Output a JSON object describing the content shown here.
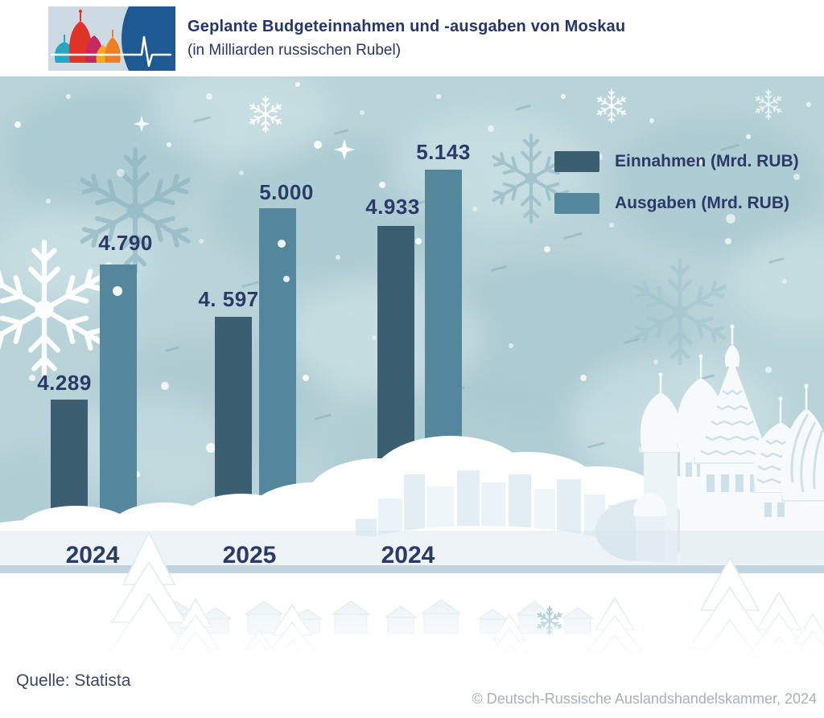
{
  "header": {
    "title": "Geplante Budgeteinnahmen und -ausgaben von Moskau",
    "subtitle": "(in Milliarden russischen Rubel)"
  },
  "legend": {
    "items": [
      {
        "label": "Einnahmen (Mrd. RUB)",
        "color": "#3b5f70"
      },
      {
        "label": "Ausgaben (Mrd. RUB)",
        "color": "#55879c"
      }
    ]
  },
  "chart_data": {
    "type": "bar",
    "title": "Geplante Budgeteinnahmen und -ausgaben von Moskau",
    "subtitle": "(in Milliarden russischen Rubel)",
    "categories": [
      "2024",
      "2025",
      "2024"
    ],
    "series": [
      {
        "name": "Einnahmen (Mrd. RUB)",
        "color": "#3b5f70",
        "values": [
          4289,
          4597,
          4933
        ],
        "labels": [
          "4.289",
          "4. 597",
          "4.933"
        ]
      },
      {
        "name": "Ausgaben (Mrd. RUB)",
        "color": "#55879c",
        "values": [
          4790,
          5000,
          5143
        ],
        "labels": [
          "4.790",
          "5.000",
          "5.143"
        ]
      }
    ],
    "unit": "Mrd. RUB",
    "grid": false,
    "axes_visible": false,
    "legend_position": "top-right"
  },
  "footer": {
    "source": "Quelle: Statista",
    "copyright": "© Deutsch-Russische Auslandshandelskammer, 2024"
  },
  "colors": {
    "background": "#b9d4d9",
    "bar_einnahmen": "#3b5f70",
    "bar_ausgaben": "#55879c",
    "value_text": "#2b3a66",
    "header_text": "#26356d",
    "logo_blue": "#1d5a93",
    "copyright_text": "#a9b0b8"
  }
}
